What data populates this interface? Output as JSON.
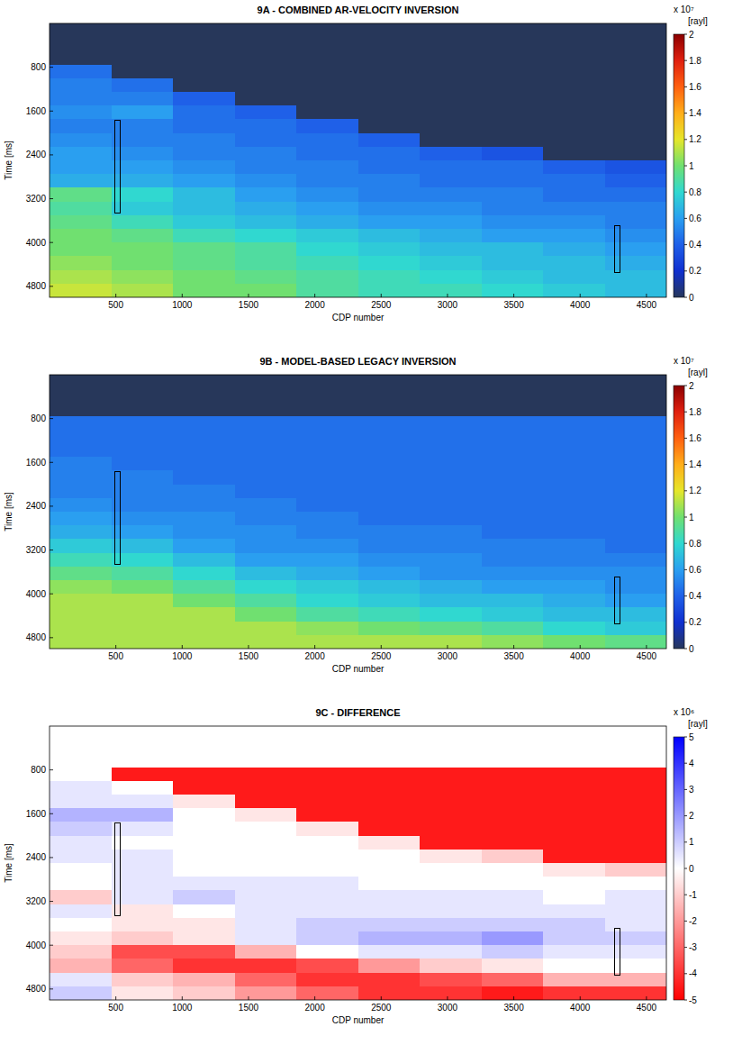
{
  "chart_data": [
    {
      "type": "heatmap",
      "title": "9A - COMBINED AR-VELOCITY INVERSION",
      "x_label": "CDP number",
      "y_label": "Time [ms]",
      "xlim": [
        0,
        4650
      ],
      "ylim": [
        0,
        5000
      ],
      "xticks": [
        500,
        1000,
        1500,
        2000,
        2500,
        3000,
        3500,
        4000,
        4500
      ],
      "yticks": [
        800,
        1600,
        2400,
        3200,
        4000,
        4800
      ],
      "x_bins": [
        0,
        465,
        930,
        1395,
        1860,
        2325,
        2790,
        3255,
        3720,
        4185,
        4650
      ],
      "y_bins": [
        0,
        250,
        500,
        750,
        1000,
        1250,
        1500,
        1750,
        2000,
        2250,
        2500,
        2750,
        3000,
        3250,
        3500,
        3750,
        4000,
        4250,
        4500,
        4750,
        5000
      ],
      "values": [
        [
          0,
          0,
          0,
          0,
          0,
          0,
          0,
          0,
          0,
          0
        ],
        [
          0,
          0,
          0,
          0,
          0,
          0,
          0,
          0,
          0,
          0
        ],
        [
          0,
          0,
          0,
          0,
          0,
          0,
          0,
          0,
          0,
          0
        ],
        [
          0.45,
          0,
          0,
          0,
          0,
          0,
          0,
          0,
          0,
          0
        ],
        [
          0.5,
          0.45,
          0,
          0,
          0,
          0,
          0,
          0,
          0,
          0
        ],
        [
          0.5,
          0.5,
          0.4,
          0,
          0,
          0,
          0,
          0,
          0,
          0
        ],
        [
          0.55,
          0.6,
          0.45,
          0.4,
          0,
          0,
          0,
          0,
          0,
          0
        ],
        [
          0.5,
          0.5,
          0.45,
          0.45,
          0.4,
          0,
          0,
          0,
          0,
          0
        ],
        [
          0.55,
          0.5,
          0.5,
          0.45,
          0.45,
          0.4,
          0,
          0,
          0,
          0
        ],
        [
          0.6,
          0.55,
          0.5,
          0.5,
          0.45,
          0.45,
          0.4,
          0.35,
          0,
          0
        ],
        [
          0.6,
          0.6,
          0.55,
          0.5,
          0.5,
          0.45,
          0.45,
          0.45,
          0.4,
          0.35
        ],
        [
          0.65,
          0.65,
          0.6,
          0.55,
          0.5,
          0.5,
          0.45,
          0.45,
          0.45,
          0.4
        ],
        [
          0.95,
          0.8,
          0.7,
          0.6,
          0.55,
          0.5,
          0.5,
          0.5,
          0.45,
          0.45
        ],
        [
          0.9,
          0.75,
          0.7,
          0.65,
          0.6,
          0.55,
          0.55,
          0.5,
          0.5,
          0.5
        ],
        [
          0.95,
          0.85,
          0.75,
          0.7,
          0.65,
          0.6,
          0.6,
          0.55,
          0.55,
          0.5
        ],
        [
          1.0,
          0.95,
          0.85,
          0.8,
          0.75,
          0.7,
          0.65,
          0.6,
          0.6,
          0.55
        ],
        [
          1.0,
          1.0,
          0.95,
          0.9,
          0.8,
          0.75,
          0.7,
          0.7,
          0.65,
          0.6
        ],
        [
          1.05,
          1.0,
          0.95,
          0.9,
          0.85,
          0.8,
          0.75,
          0.7,
          0.7,
          0.65
        ],
        [
          1.1,
          1.05,
          1.0,
          0.95,
          0.9,
          0.85,
          0.8,
          0.75,
          0.7,
          0.7
        ],
        [
          1.15,
          1.1,
          1.0,
          1.0,
          0.9,
          0.85,
          0.85,
          0.8,
          0.75,
          0.7
        ]
      ],
      "colorbar": {
        "lim": [
          0,
          2
        ],
        "ticks": [
          0,
          0.2,
          0.4,
          0.6,
          0.8,
          1,
          1.2,
          1.4,
          1.6,
          1.8,
          2
        ],
        "colors": [
          "#27375a",
          "#1030d0",
          "#1f60e8",
          "#2a9ff0",
          "#30d8d0",
          "#70e070",
          "#e6e62a",
          "#ffae1a",
          "#ff6010",
          "#e02010",
          "#8b0000"
        ],
        "multiplier": "x 10⁷",
        "unit": "[rayl]"
      },
      "wells": [
        {
          "cdp": 510,
          "time": [
            1770,
            3460
          ]
        },
        {
          "cdp": 4280,
          "time": [
            3700,
            4540
          ]
        }
      ]
    },
    {
      "type": "heatmap",
      "title": "9B - MODEL-BASED LEGACY INVERSION",
      "x_label": "CDP number",
      "y_label": "Time [ms]",
      "xlim": [
        0,
        4650
      ],
      "ylim": [
        0,
        5000
      ],
      "xticks": [
        500,
        1000,
        1500,
        2000,
        2500,
        3000,
        3500,
        4000,
        4500
      ],
      "yticks": [
        800,
        1600,
        2400,
        3200,
        4000,
        4800
      ],
      "x_bins": [
        0,
        465,
        930,
        1395,
        1860,
        2325,
        2790,
        3255,
        3720,
        4185,
        4650
      ],
      "y_bins": [
        0,
        250,
        500,
        750,
        1000,
        1250,
        1500,
        1750,
        2000,
        2250,
        2500,
        2750,
        3000,
        3250,
        3500,
        3750,
        4000,
        4250,
        4500,
        4750,
        5000
      ],
      "values": [
        [
          0,
          0,
          0,
          0,
          0,
          0,
          0,
          0,
          0,
          0
        ],
        [
          0,
          0,
          0,
          0,
          0,
          0,
          0,
          0,
          0,
          0
        ],
        [
          0,
          0,
          0,
          0,
          0,
          0,
          0,
          0,
          0,
          0
        ],
        [
          0.45,
          0.45,
          0.45,
          0.45,
          0.45,
          0.45,
          0.45,
          0.45,
          0.45,
          0.45
        ],
        [
          0.45,
          0.45,
          0.45,
          0.45,
          0.45,
          0.45,
          0.45,
          0.45,
          0.45,
          0.45
        ],
        [
          0.45,
          0.45,
          0.45,
          0.45,
          0.45,
          0.45,
          0.45,
          0.45,
          0.45,
          0.45
        ],
        [
          0.5,
          0.45,
          0.45,
          0.45,
          0.45,
          0.45,
          0.45,
          0.45,
          0.45,
          0.45
        ],
        [
          0.5,
          0.5,
          0.45,
          0.45,
          0.45,
          0.45,
          0.45,
          0.45,
          0.45,
          0.45
        ],
        [
          0.5,
          0.5,
          0.5,
          0.45,
          0.45,
          0.45,
          0.45,
          0.45,
          0.45,
          0.45
        ],
        [
          0.55,
          0.5,
          0.5,
          0.5,
          0.45,
          0.45,
          0.45,
          0.45,
          0.45,
          0.45
        ],
        [
          0.6,
          0.55,
          0.55,
          0.5,
          0.5,
          0.45,
          0.45,
          0.45,
          0.45,
          0.45
        ],
        [
          0.65,
          0.6,
          0.55,
          0.55,
          0.5,
          0.5,
          0.5,
          0.45,
          0.45,
          0.45
        ],
        [
          0.75,
          0.7,
          0.6,
          0.55,
          0.55,
          0.5,
          0.5,
          0.5,
          0.5,
          0.45
        ],
        [
          0.85,
          0.8,
          0.7,
          0.6,
          0.6,
          0.55,
          0.55,
          0.5,
          0.5,
          0.5
        ],
        [
          0.95,
          0.9,
          0.8,
          0.7,
          0.65,
          0.6,
          0.55,
          0.55,
          0.55,
          0.55
        ],
        [
          1.05,
          1.0,
          0.9,
          0.8,
          0.75,
          0.7,
          0.65,
          0.6,
          0.6,
          0.55
        ],
        [
          1.1,
          1.1,
          1.0,
          0.9,
          0.8,
          0.75,
          0.7,
          0.7,
          0.65,
          0.6
        ],
        [
          1.1,
          1.1,
          1.1,
          1.0,
          0.9,
          0.85,
          0.8,
          0.75,
          0.7,
          0.7
        ],
        [
          1.1,
          1.1,
          1.1,
          1.1,
          1.05,
          1.0,
          0.95,
          0.9,
          0.8,
          0.75
        ],
        [
          1.1,
          1.1,
          1.1,
          1.1,
          1.1,
          1.1,
          1.1,
          1.05,
          1.0,
          0.95
        ]
      ],
      "colorbar": {
        "lim": [
          0,
          2
        ],
        "ticks": [
          0,
          0.2,
          0.4,
          0.6,
          0.8,
          1,
          1.2,
          1.4,
          1.6,
          1.8,
          2
        ],
        "colors": [
          "#27375a",
          "#1030d0",
          "#1f60e8",
          "#2a9ff0",
          "#30d8d0",
          "#70e070",
          "#e6e62a",
          "#ffae1a",
          "#ff6010",
          "#e02010",
          "#8b0000"
        ],
        "multiplier": "x 10⁷",
        "unit": "[rayl]"
      },
      "wells": [
        {
          "cdp": 510,
          "time": [
            1770,
            3460
          ]
        },
        {
          "cdp": 4280,
          "time": [
            3700,
            4540
          ]
        }
      ]
    },
    {
      "type": "heatmap",
      "title": "9C - DIFFERENCE",
      "x_label": "CDP number",
      "y_label": "Time [ms]",
      "xlim": [
        0,
        4650
      ],
      "ylim": [
        0,
        5000
      ],
      "xticks": [
        500,
        1000,
        1500,
        2000,
        2500,
        3000,
        3500,
        4000,
        4500
      ],
      "yticks": [
        800,
        1600,
        2400,
        3200,
        4000,
        4800
      ],
      "x_bins": [
        0,
        465,
        930,
        1395,
        1860,
        2325,
        2790,
        3255,
        3720,
        4185,
        4650
      ],
      "y_bins": [
        0,
        250,
        500,
        750,
        1000,
        1250,
        1500,
        1750,
        2000,
        2250,
        2500,
        2750,
        3000,
        3250,
        3500,
        3750,
        4000,
        4250,
        4500,
        4750,
        5000
      ],
      "values": [
        [
          null,
          null,
          null,
          null,
          null,
          null,
          null,
          null,
          null,
          null
        ],
        [
          null,
          null,
          null,
          null,
          null,
          null,
          null,
          null,
          null,
          null
        ],
        [
          null,
          null,
          null,
          null,
          null,
          null,
          null,
          null,
          null,
          null
        ],
        [
          0,
          -4.5,
          -4.5,
          -4.5,
          -4.5,
          -4.5,
          -4.5,
          -4.5,
          -4.5,
          -4.5
        ],
        [
          0.5,
          0,
          -4.5,
          -4.5,
          -4.5,
          -4.5,
          -4.5,
          -4.5,
          -4.5,
          -4.5
        ],
        [
          0.5,
          0.5,
          -0.5,
          -4.5,
          -4.5,
          -4.5,
          -4.5,
          -4.5,
          -4.5,
          -4.5
        ],
        [
          1.5,
          1.5,
          0,
          -0.5,
          -4.5,
          -4.5,
          -4.5,
          -4.5,
          -4.5,
          -4.5
        ],
        [
          1.0,
          0.5,
          0,
          0,
          -0.5,
          -4.5,
          -4.5,
          -4.5,
          -4.5,
          -4.5
        ],
        [
          0.5,
          0,
          0,
          0,
          0,
          -0.5,
          -4.5,
          -4.5,
          -4.5,
          -4.5
        ],
        [
          0.5,
          0.5,
          0,
          0,
          0,
          0,
          -0.5,
          -1.0,
          -4.5,
          -4.5
        ],
        [
          0,
          0.5,
          0,
          0,
          0,
          0,
          0,
          0,
          -0.5,
          -1.0
        ],
        [
          0,
          0.5,
          0.5,
          0.5,
          0.5,
          0,
          0,
          0,
          0,
          0
        ],
        [
          -1.0,
          0.5,
          1.0,
          0.5,
          0.5,
          0.5,
          0.5,
          0.5,
          0,
          0.5
        ],
        [
          0.5,
          -0.5,
          0,
          0.5,
          0.5,
          0.5,
          0.5,
          0.5,
          0.5,
          0.5
        ],
        [
          0,
          -0.5,
          -0.5,
          0.5,
          1.0,
          1.0,
          1.0,
          1.0,
          1.0,
          0.5
        ],
        [
          -0.5,
          -1.0,
          -0.5,
          0.5,
          1.0,
          1.5,
          1.5,
          2.0,
          1.0,
          1.0
        ],
        [
          -1.0,
          -3.5,
          -3.5,
          -1.5,
          0,
          0.5,
          0.5,
          1.0,
          0.5,
          0.5
        ],
        [
          -1.5,
          -3.0,
          -4.0,
          -4.0,
          -3.5,
          -2.0,
          -1.0,
          -0.5,
          0,
          0
        ],
        [
          0.5,
          -1.0,
          -1.5,
          -3.0,
          -4.0,
          -4.0,
          -3.5,
          -3.0,
          -1.5,
          -1.5
        ],
        [
          1.0,
          -0.5,
          -1.0,
          -2.0,
          -3.0,
          -4.0,
          -4.0,
          -4.5,
          -4.0,
          -4.0
        ]
      ],
      "colorbar": {
        "lim": [
          -5,
          5
        ],
        "ticks": [
          -5,
          -4,
          -3,
          -2,
          -1,
          0,
          1,
          2,
          3,
          4,
          5
        ],
        "colors": [
          "#ff0000",
          "#ff3333",
          "#ff6666",
          "#ff9999",
          "#ffcccc",
          "#ffffff",
          "#ccccff",
          "#9999ff",
          "#6666ff",
          "#3333ff",
          "#0000ff"
        ],
        "multiplier": "x 10⁶",
        "unit": "[rayl]"
      },
      "wells": [
        {
          "cdp": 510,
          "time": [
            1770,
            3460
          ]
        },
        {
          "cdp": 4280,
          "time": [
            3700,
            4540
          ]
        }
      ]
    }
  ]
}
